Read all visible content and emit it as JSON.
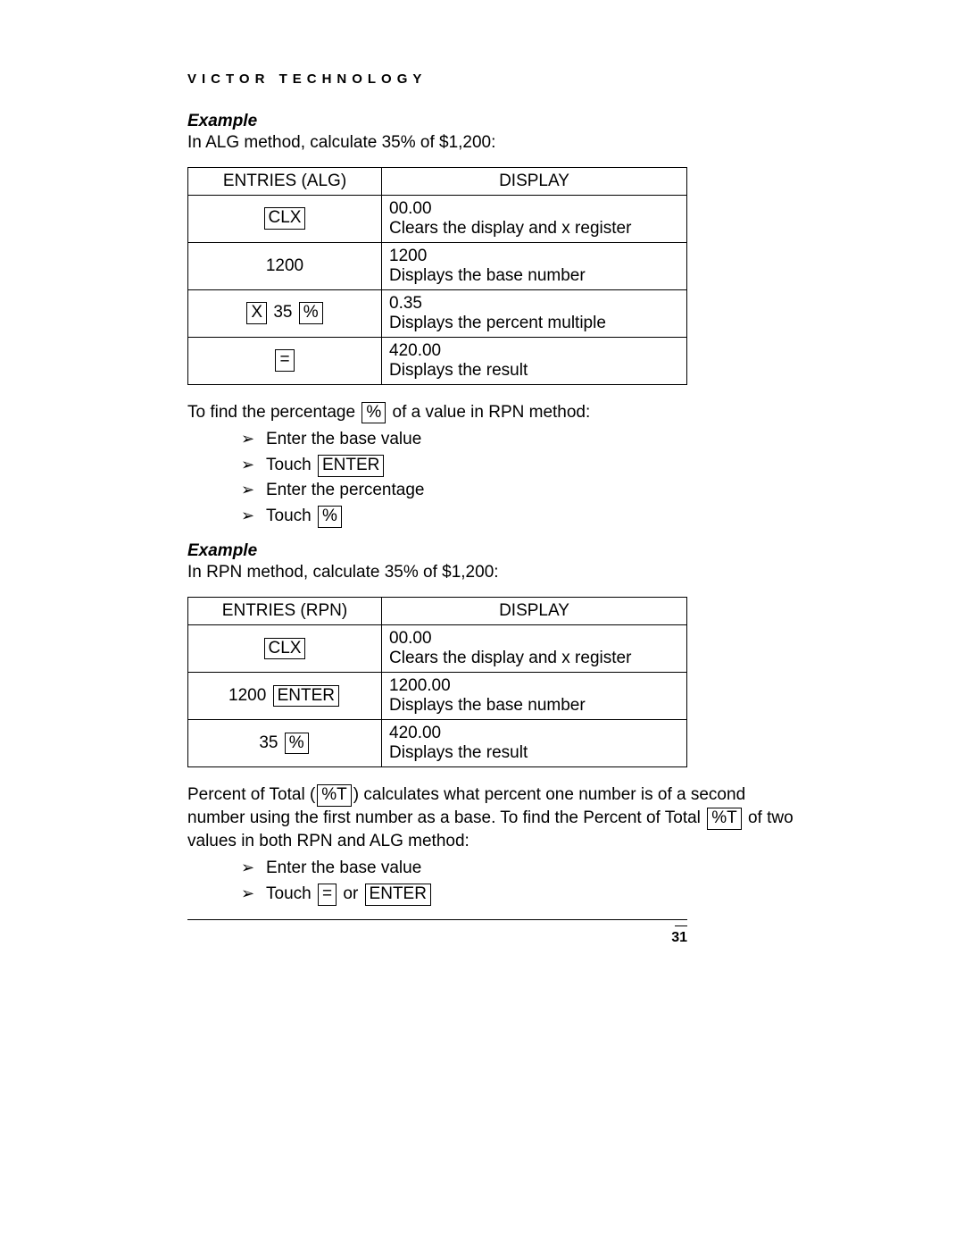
{
  "brand": "VICTOR TECHNOLOGY",
  "example_label": "Example",
  "alg_intro": "In ALG method, calculate 35% of $1,200:",
  "table_headers": {
    "entries_alg": "ENTRIES (ALG)",
    "entries_rpn": "ENTRIES (RPN)",
    "display": "DISPLAY"
  },
  "keys": {
    "clx": "CLX",
    "x": "X",
    "percent": "%",
    "equals": "=",
    "enter": "ENTER",
    "pct_t": "%T"
  },
  "alg_rows": [
    {
      "entry_plain": "",
      "display1": "00.00",
      "display2": "Clears the display and x register"
    },
    {
      "entry_plain": "1200",
      "display1": "1200",
      "display2": "Displays the base number"
    },
    {
      "mid_text": "35",
      "display1": "0.35",
      "display2": "Displays the percent multiple"
    },
    {
      "display1": "420.00",
      "display2": "Displays the result"
    }
  ],
  "rpn_intro_prefix": "To find the percentage ",
  "rpn_intro_suffix": " of a value in RPN method:",
  "rpn_steps": {
    "s1": "Enter the base value",
    "s2_pre": "Touch ",
    "s3": "Enter the percentage",
    "s4_pre": "Touch "
  },
  "rpn_example_intro": "In RPN method, calculate 35% of $1,200:",
  "rpn_rows": [
    {
      "display1": "00.00",
      "display2": "Clears the display and x register"
    },
    {
      "pre_text": "1200  ",
      "display1": "1200.00",
      "display2": "Displays the base number"
    },
    {
      "pre_text": "35 ",
      "display1": "420.00",
      "display2": "Displays the result"
    }
  ],
  "pot_text": {
    "p1a": "Percent of Total (",
    "p1b": ") calculates what percent one number is of a second number using the first number as a base.  To find the Percent of Total ",
    "p1c": " of two values in both RPN and ALG method:"
  },
  "pot_steps": {
    "s1": "Enter the base value",
    "s2_pre": "Touch ",
    "s2_or": "  or  "
  },
  "page_number": "31"
}
